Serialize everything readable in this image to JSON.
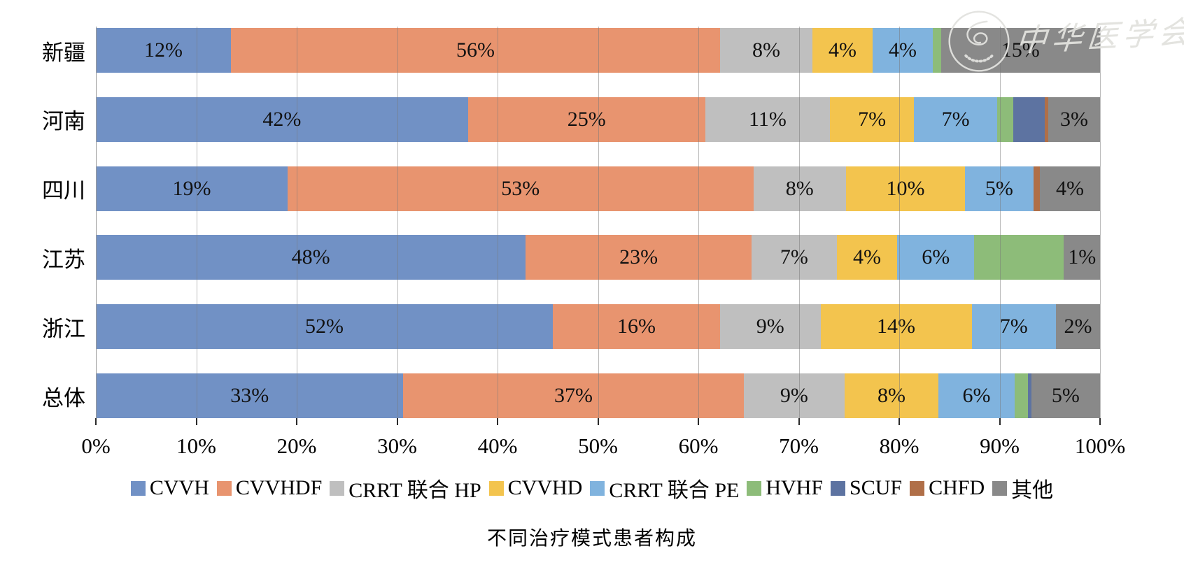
{
  "watermark": {
    "org_text": "中华医学会",
    "seal_icon": "chinese-medical-association-seal-icon"
  },
  "chart_data": {
    "type": "bar",
    "orientation": "horizontal",
    "stacked": true,
    "unit": "%",
    "title": "不同治疗模式患者构成",
    "grid": true,
    "legend_position": "bottom",
    "x_axis": {
      "min": 0,
      "max": 100,
      "tick_labels": [
        "0%",
        "10%",
        "20%",
        "30%",
        "40%",
        "50%",
        "60%",
        "70%",
        "80%",
        "90%",
        "100%"
      ]
    },
    "series_names": [
      "CVVH",
      "CVVHDF",
      "CRRT 联合 HP",
      "CVVHD",
      "CRRT 联合 PE",
      "HVHF",
      "SCUF",
      "CHFD",
      "其他"
    ],
    "series_colors": [
      "#7191C5",
      "#E8946F",
      "#BFBFBF",
      "#F3C44E",
      "#80B3DE",
      "#8DBC79",
      "#5D73A1",
      "#B06F48",
      "#898989"
    ],
    "categories": [
      "新疆",
      "河南",
      "四川",
      "江苏",
      "浙江",
      "总体"
    ],
    "rows": [
      {
        "category": "新疆",
        "values": [
          12,
          56,
          8,
          4,
          4,
          1,
          0,
          0,
          15
        ],
        "labels": [
          "12%",
          "56%",
          "8%",
          "4%",
          "4%",
          "",
          "",
          "",
          "15%"
        ]
      },
      {
        "category": "河南",
        "values": [
          42,
          25,
          11,
          7,
          7,
          2,
          4,
          0.4,
          3
        ],
        "labels": [
          "42%",
          "25%",
          "11%",
          "7%",
          "7%",
          "",
          "",
          "",
          "3%"
        ]
      },
      {
        "category": "四川",
        "values": [
          19,
          53,
          8,
          10,
          5,
          0,
          0,
          0.8,
          4
        ],
        "labels": [
          "19%",
          "53%",
          "8%",
          "10%",
          "5%",
          "",
          "",
          "",
          "4%"
        ]
      },
      {
        "category": "江苏",
        "values": [
          48,
          23,
          7,
          4,
          6,
          11,
          0,
          0,
          1
        ],
        "labels": [
          "48%",
          "23%",
          "7%",
          "4%",
          "6%",
          "",
          "",
          "",
          "1%"
        ]
      },
      {
        "category": "浙江",
        "values": [
          52,
          16,
          9,
          14,
          7,
          0,
          0,
          0,
          2
        ],
        "labels": [
          "52%",
          "16%",
          "9%",
          "14%",
          "7%",
          "",
          "",
          "",
          "2%"
        ]
      },
      {
        "category": "总体",
        "values": [
          33,
          37,
          9,
          8,
          6,
          1.6,
          0.4,
          0,
          5
        ],
        "labels": [
          "33%",
          "37%",
          "9%",
          "8%",
          "6%",
          "",
          "",
          "",
          "5%"
        ]
      }
    ]
  }
}
